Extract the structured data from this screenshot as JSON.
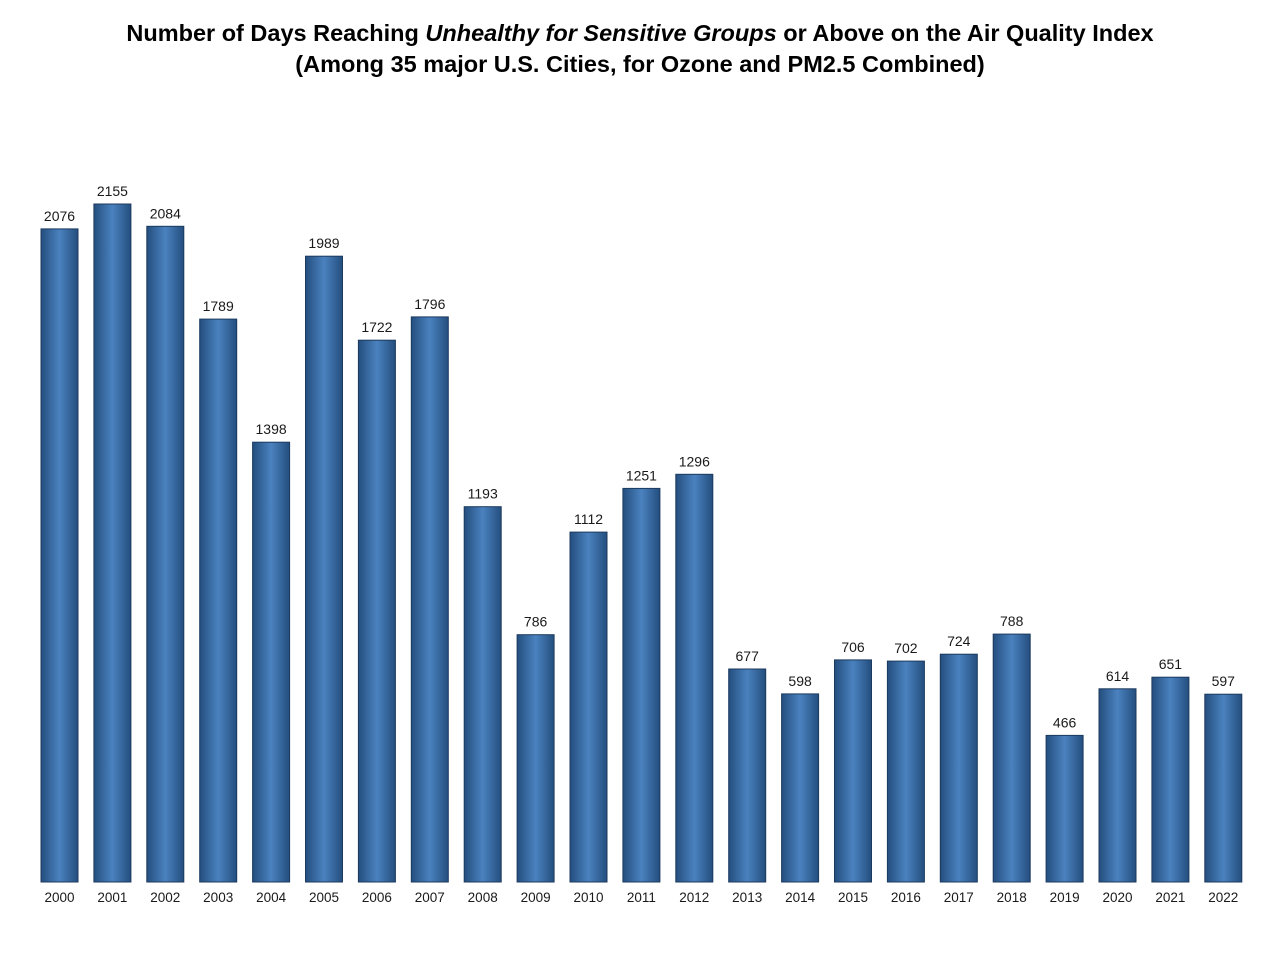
{
  "chart_data": {
    "type": "bar",
    "title": {
      "prefix": "Number of Days Reaching ",
      "emphasis": "Unhealthy for Sensitive Groups",
      "suffix": " or Above on the Air Quality Index"
    },
    "subtitle": "(Among 35 major U.S. Cities, for Ozone and PM2.5 Combined)",
    "xlabel": "",
    "ylabel": "",
    "ylim": [
      0,
      2200
    ],
    "grid": false,
    "legend": "none",
    "categories": [
      "2000",
      "2001",
      "2002",
      "2003",
      "2004",
      "2005",
      "2006",
      "2007",
      "2008",
      "2009",
      "2010",
      "2011",
      "2012",
      "2013",
      "2014",
      "2015",
      "2016",
      "2017",
      "2018",
      "2019",
      "2020",
      "2021",
      "2022"
    ],
    "values": [
      2076,
      2155,
      2084,
      1789,
      1398,
      1989,
      1722,
      1796,
      1193,
      786,
      1112,
      1251,
      1296,
      677,
      598,
      706,
      702,
      724,
      788,
      466,
      614,
      651,
      597
    ],
    "colors": {
      "bar_edge": "#1c3a5e",
      "bar_dark": "#244e7e",
      "bar_light": "#4a82bf"
    }
  }
}
